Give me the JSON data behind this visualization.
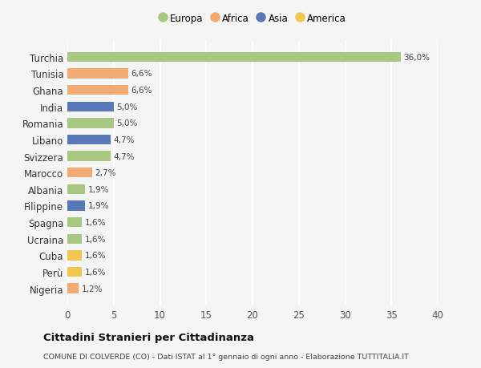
{
  "countries": [
    "Turchia",
    "Tunisia",
    "Ghana",
    "India",
    "Romania",
    "Libano",
    "Svizzera",
    "Marocco",
    "Albania",
    "Filippine",
    "Spagna",
    "Ucraina",
    "Cuba",
    "Perù",
    "Nigeria"
  ],
  "values": [
    36.0,
    6.6,
    6.6,
    5.0,
    5.0,
    4.7,
    4.7,
    2.7,
    1.9,
    1.9,
    1.6,
    1.6,
    1.6,
    1.6,
    1.2
  ],
  "continents": [
    "Europa",
    "Africa",
    "Africa",
    "Asia",
    "Europa",
    "Asia",
    "Europa",
    "Africa",
    "Europa",
    "Asia",
    "Europa",
    "Europa",
    "America",
    "America",
    "Africa"
  ],
  "continent_colors": {
    "Europa": "#a8c882",
    "Africa": "#f0aa72",
    "Asia": "#5878b8",
    "America": "#f0c850"
  },
  "legend_order": [
    "Europa",
    "Africa",
    "Asia",
    "America"
  ],
  "title": "Cittadini Stranieri per Cittadinanza",
  "subtitle": "COMUNE DI COLVERDE (CO) - Dati ISTAT al 1° gennaio di ogni anno - Elaborazione TUTTITALIA.IT",
  "xlim": [
    0,
    40
  ],
  "xticks": [
    0,
    5,
    10,
    15,
    20,
    25,
    30,
    35,
    40
  ],
  "background_color": "#f5f5f5",
  "grid_color": "#ffffff",
  "bar_height": 0.6
}
